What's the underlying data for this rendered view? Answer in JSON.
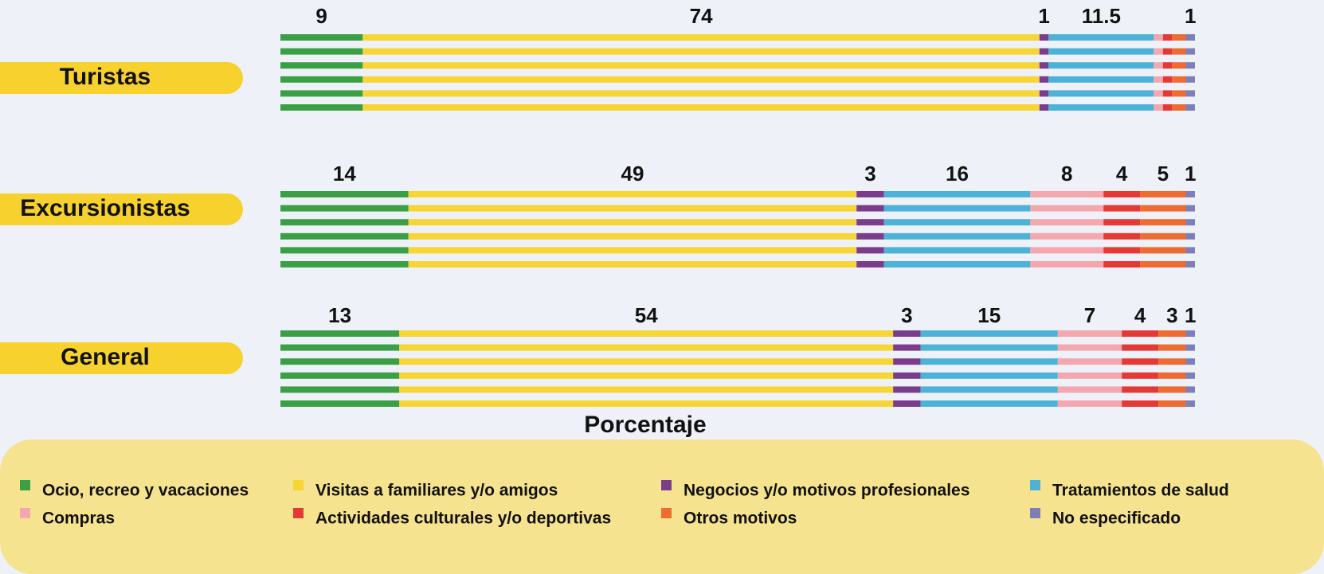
{
  "chart_data": {
    "type": "stacked-bar-horizontal",
    "categories": [
      "Turistas",
      "Excursionistas",
      "General"
    ],
    "x_label": "Porcentaje",
    "xlim": [
      0,
      100
    ],
    "series": [
      {
        "name": "Ocio, recreo y vacaciones",
        "color": "#3a9f45",
        "values": [
          9,
          14,
          13
        ],
        "value_labels": [
          "9",
          "14",
          "13"
        ]
      },
      {
        "name": "Visitas a familiares y/o amigos",
        "color": "#f6d534",
        "values": [
          74,
          49,
          54
        ],
        "value_labels": [
          "74",
          "49",
          "54"
        ]
      },
      {
        "name": "Negocios y/o motivos profesionales",
        "color": "#7a3d8c",
        "values": [
          1,
          3,
          3
        ],
        "value_labels": [
          "1",
          "3",
          "3"
        ]
      },
      {
        "name": "Tratamientos de salud",
        "color": "#4db2d8",
        "values": [
          11.5,
          16,
          15
        ],
        "value_labels": [
          "11.5",
          "16",
          "15"
        ]
      },
      {
        "name": "Compras",
        "color": "#f4a7ae",
        "values": [
          1,
          8,
          7
        ],
        "value_labels": [
          null,
          "8",
          "7"
        ]
      },
      {
        "name": "Actividades culturales y/o deportivas",
        "color": "#e53935",
        "values": [
          1,
          4,
          4
        ],
        "value_labels": [
          null,
          "4",
          "4"
        ]
      },
      {
        "name": "Otros motivos",
        "color": "#ee6b31",
        "values": [
          1.5,
          5,
          3
        ],
        "value_labels": [
          null,
          "5",
          "3"
        ]
      },
      {
        "name": "No especificado",
        "color": "#7d7fb9",
        "values": [
          1,
          1,
          1
        ],
        "value_labels": [
          "1",
          "1",
          "1"
        ]
      }
    ]
  }
}
